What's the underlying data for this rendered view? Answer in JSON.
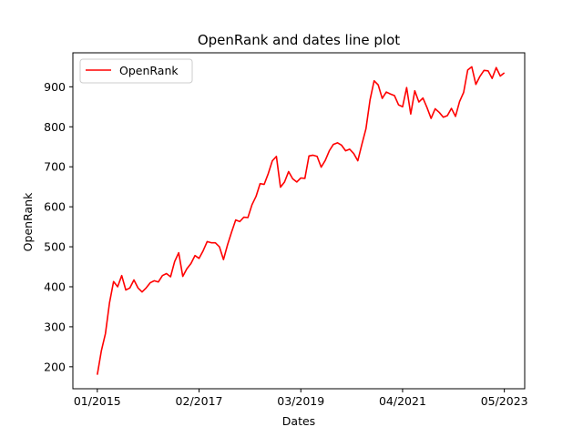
{
  "chart_data": {
    "type": "line",
    "title": "OpenRank and dates line plot",
    "xlabel": "Dates",
    "ylabel": "OpenRank",
    "x_ticks": [
      "01/2015",
      "02/2017",
      "03/2019",
      "04/2021",
      "05/2023"
    ],
    "x_tick_months": [
      "2015-01",
      "2017-02",
      "2019-03",
      "2021-04",
      "2023-05"
    ],
    "x_range": [
      "2014-07",
      "2023-10"
    ],
    "y_ticks": [
      200,
      300,
      400,
      500,
      600,
      700,
      800,
      900
    ],
    "ylim": [
      145,
      985
    ],
    "grid": false,
    "legend_position": "top-left",
    "series": [
      {
        "name": "OpenRank",
        "color": "#ff0000",
        "x": [
          "2015-01",
          "2015-02",
          "2015-03",
          "2015-04",
          "2015-05",
          "2015-06",
          "2015-07",
          "2015-08",
          "2015-09",
          "2015-10",
          "2015-11",
          "2015-12",
          "2016-01",
          "2016-02",
          "2016-03",
          "2016-04",
          "2016-05",
          "2016-06",
          "2016-07",
          "2016-08",
          "2016-09",
          "2016-10",
          "2016-11",
          "2016-12",
          "2017-01",
          "2017-02",
          "2017-03",
          "2017-04",
          "2017-05",
          "2017-06",
          "2017-07",
          "2017-08",
          "2017-09",
          "2017-10",
          "2017-11",
          "2017-12",
          "2018-01",
          "2018-02",
          "2018-03",
          "2018-04",
          "2018-05",
          "2018-06",
          "2018-07",
          "2018-08",
          "2018-09",
          "2018-10",
          "2018-11",
          "2018-12",
          "2019-01",
          "2019-02",
          "2019-03",
          "2019-04",
          "2019-05",
          "2019-06",
          "2019-07",
          "2019-08",
          "2019-09",
          "2019-10",
          "2019-11",
          "2019-12",
          "2020-01",
          "2020-02",
          "2020-03",
          "2020-04",
          "2020-05",
          "2020-06",
          "2020-07",
          "2020-08",
          "2020-09",
          "2020-10",
          "2020-11",
          "2020-12",
          "2021-01",
          "2021-02",
          "2021-03",
          "2021-04",
          "2021-05",
          "2021-06",
          "2021-07",
          "2021-08",
          "2021-09",
          "2021-10",
          "2021-11",
          "2021-12",
          "2022-01",
          "2022-02",
          "2022-03",
          "2022-04",
          "2022-05",
          "2022-06",
          "2022-07",
          "2022-08",
          "2022-09",
          "2022-10",
          "2022-11",
          "2022-12",
          "2023-01",
          "2023-02",
          "2023-03",
          "2023-04",
          "2023-05"
        ],
        "values": [
          180,
          240,
          283,
          360,
          413,
          400,
          428,
          392,
          397,
          417,
          397,
          387,
          397,
          410,
          415,
          412,
          428,
          433,
          425,
          463,
          485,
          426,
          445,
          458,
          478,
          471,
          490,
          513,
          510,
          510,
          500,
          468,
          505,
          537,
          567,
          563,
          574,
          573,
          605,
          626,
          658,
          656,
          683,
          715,
          726,
          649,
          662,
          688,
          670,
          662,
          672,
          671,
          727,
          729,
          726,
          699,
          716,
          740,
          756,
          760,
          754,
          740,
          744,
          733,
          715,
          756,
          795,
          867,
          915,
          905,
          871,
          887,
          882,
          878,
          855,
          850,
          898,
          832,
          890,
          862,
          872,
          848,
          821,
          845,
          836,
          824,
          828,
          846,
          826,
          863,
          886,
          942,
          950,
          906,
          926,
          941,
          940,
          921,
          948,
          927,
          935
        ]
      }
    ]
  }
}
